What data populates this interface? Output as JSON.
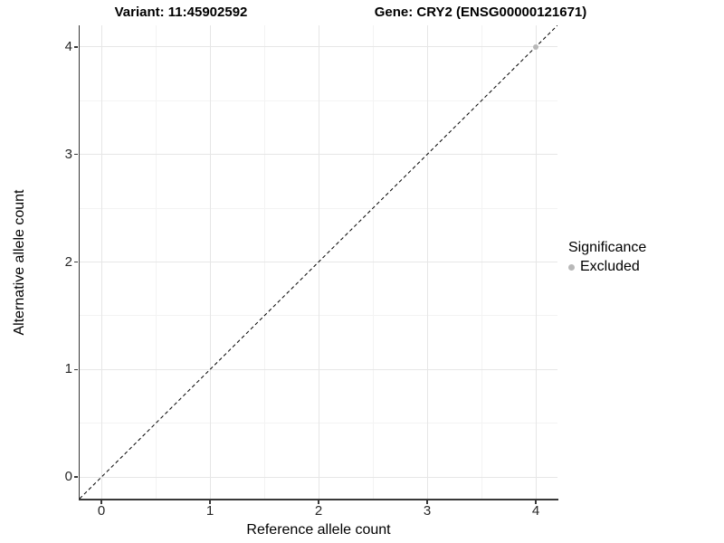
{
  "chart_data": {
    "type": "scatter",
    "title_left": "Variant: 11:45902592",
    "title_right": "Gene: CRY2 (ENSG00000121671)",
    "xlabel": "Reference allele count",
    "ylabel": "Alternative allele count",
    "xlim": [
      -0.2,
      4.2
    ],
    "ylim": [
      -0.2,
      4.2
    ],
    "x_ticks": [
      0,
      1,
      2,
      3,
      4
    ],
    "y_ticks": [
      0,
      1,
      2,
      3,
      4
    ],
    "x_minor_ticks": [
      0.5,
      1.5,
      2.5,
      3.5
    ],
    "y_minor_ticks": [
      0.5,
      1.5,
      2.5,
      3.5
    ],
    "grid": true,
    "points": [
      {
        "x": 4,
        "y": 4,
        "series": "Excluded"
      }
    ],
    "reference_line": {
      "type": "identity_y_equals_x",
      "style": "dashed",
      "from": [
        -0.2,
        -0.2
      ],
      "to": [
        4.2,
        4.2
      ],
      "color": "#000000"
    },
    "legend": {
      "title": "Significance",
      "position": "right",
      "items": [
        {
          "label": "Excluded",
          "color": "#b8b8b8",
          "marker": "circle"
        }
      ]
    },
    "colors": {
      "axis": "#383838",
      "grid_major": "#e6e6e6",
      "grid_minor": "#f3f3f3",
      "point": "#b8b8b8"
    }
  }
}
